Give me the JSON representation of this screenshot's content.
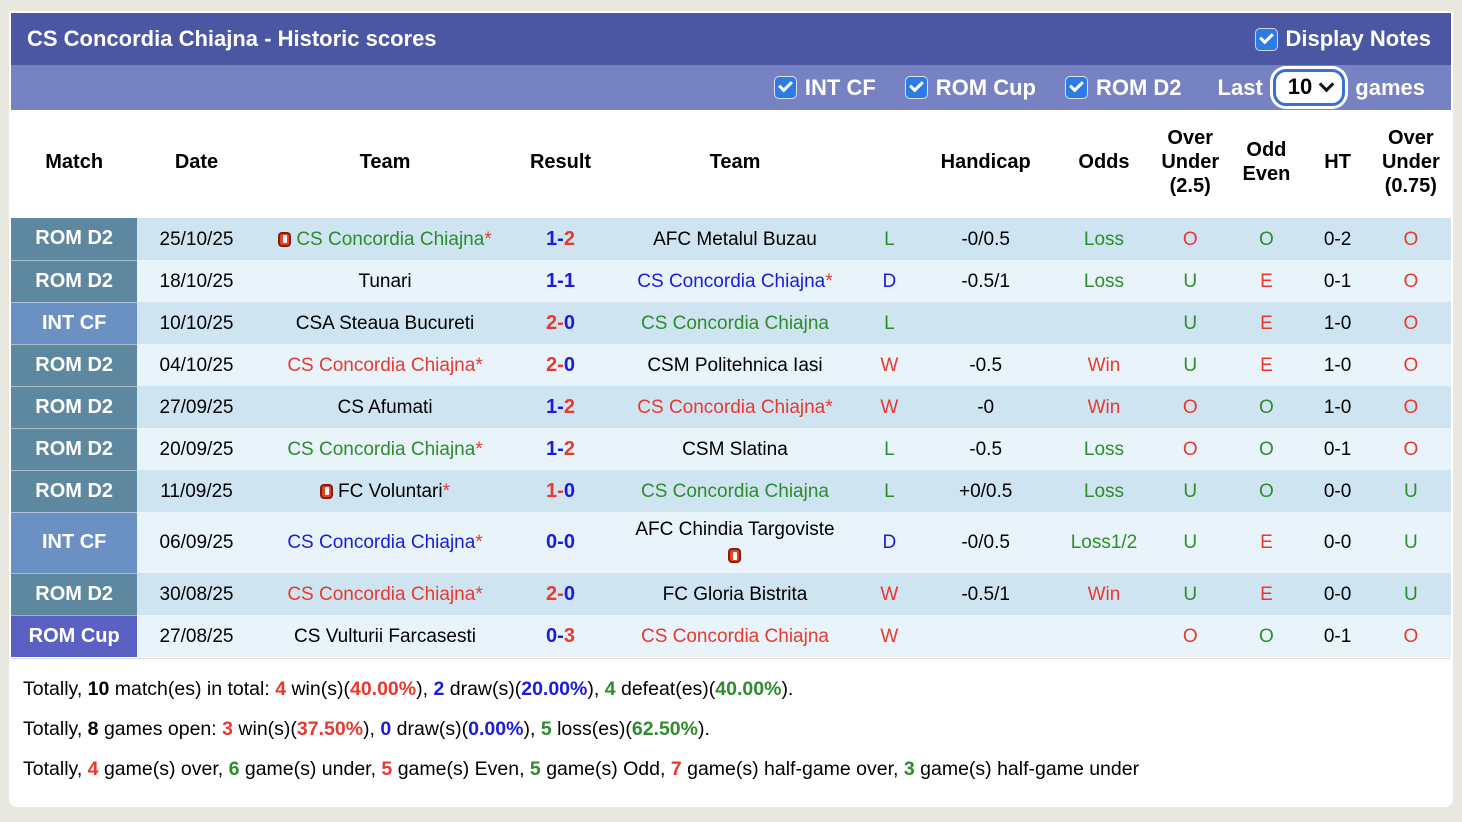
{
  "header": {
    "title": "CS Concordia Chiajna - Historic scores",
    "display_notes_label": "Display Notes",
    "display_notes_checked": true,
    "filters": [
      {
        "label": "INT CF",
        "checked": true
      },
      {
        "label": "ROM Cup",
        "checked": true
      },
      {
        "label": "ROM D2",
        "checked": true
      }
    ],
    "last_label": "Last",
    "games_count": "10",
    "games_label": "games"
  },
  "colors": {
    "red": "#e8392f",
    "blue": "#1b1be0",
    "green": "#2e8b2e",
    "header_dark": "#4c57a4",
    "header_light": "#7682c2",
    "checkbox_blue": "#2d7ce6",
    "row_odd": "#cfe4f1",
    "row_even": "#e9f4fa"
  },
  "league_colors": {
    "ROM D2": "#5e87a0",
    "INT CF": "#6b90c4",
    "ROM Cup": "#5a61c3"
  },
  "table": {
    "columns": [
      "Match",
      "Date",
      "Team",
      "Result",
      "Team",
      "",
      "Handicap",
      "Odds",
      "Over Under (2.5)",
      "Odd Even",
      "HT",
      "Over Under (0.75)"
    ],
    "star_char": "*",
    "score_separator": "-",
    "rows": [
      {
        "league": "ROM D2",
        "date": "25/10/25",
        "home": {
          "name": "CS Concordia Chiajna",
          "star": true,
          "color": "green",
          "redcard": "before"
        },
        "score": {
          "home": "1",
          "away": "2",
          "home_color": "blue",
          "away_color": "red"
        },
        "away": {
          "name": "AFC Metalul Buzau",
          "star": false,
          "color": "black",
          "redcard": null
        },
        "wdl": {
          "text": "L",
          "color": "green"
        },
        "handicap": "-0/0.5",
        "odds": {
          "text": "Loss",
          "color": "green"
        },
        "ou25": {
          "text": "O",
          "color": "red"
        },
        "oddeven": {
          "text": "O",
          "color": "green"
        },
        "ht": "0-2",
        "ou075": {
          "text": "O",
          "color": "red"
        }
      },
      {
        "league": "ROM D2",
        "date": "18/10/25",
        "home": {
          "name": "Tunari",
          "star": false,
          "color": "black",
          "redcard": null
        },
        "score": {
          "home": "1",
          "away": "1",
          "home_color": "blue",
          "away_color": "blue"
        },
        "away": {
          "name": "CS Concordia Chiajna",
          "star": true,
          "color": "blue",
          "redcard": null
        },
        "wdl": {
          "text": "D",
          "color": "blue"
        },
        "handicap": "-0.5/1",
        "odds": {
          "text": "Loss",
          "color": "green"
        },
        "ou25": {
          "text": "U",
          "color": "green"
        },
        "oddeven": {
          "text": "E",
          "color": "red"
        },
        "ht": "0-1",
        "ou075": {
          "text": "O",
          "color": "red"
        }
      },
      {
        "league": "INT CF",
        "date": "10/10/25",
        "home": {
          "name": "CSA Steaua Bucureti",
          "star": false,
          "color": "black",
          "redcard": null
        },
        "score": {
          "home": "2",
          "away": "0",
          "home_color": "red",
          "away_color": "blue"
        },
        "away": {
          "name": "CS Concordia Chiajna",
          "star": false,
          "color": "green",
          "redcard": null
        },
        "wdl": {
          "text": "L",
          "color": "green"
        },
        "handicap": "",
        "odds": {
          "text": "",
          "color": "black"
        },
        "ou25": {
          "text": "U",
          "color": "green"
        },
        "oddeven": {
          "text": "E",
          "color": "red"
        },
        "ht": "1-0",
        "ou075": {
          "text": "O",
          "color": "red"
        }
      },
      {
        "league": "ROM D2",
        "date": "04/10/25",
        "home": {
          "name": "CS Concordia Chiajna",
          "star": true,
          "color": "red",
          "redcard": null
        },
        "score": {
          "home": "2",
          "away": "0",
          "home_color": "red",
          "away_color": "blue"
        },
        "away": {
          "name": "CSM Politehnica Iasi",
          "star": false,
          "color": "black",
          "redcard": null
        },
        "wdl": {
          "text": "W",
          "color": "red"
        },
        "handicap": "-0.5",
        "odds": {
          "text": "Win",
          "color": "red"
        },
        "ou25": {
          "text": "U",
          "color": "green"
        },
        "oddeven": {
          "text": "E",
          "color": "red"
        },
        "ht": "1-0",
        "ou075": {
          "text": "O",
          "color": "red"
        }
      },
      {
        "league": "ROM D2",
        "date": "27/09/25",
        "home": {
          "name": "CS Afumati",
          "star": false,
          "color": "black",
          "redcard": null
        },
        "score": {
          "home": "1",
          "away": "2",
          "home_color": "blue",
          "away_color": "red"
        },
        "away": {
          "name": "CS Concordia Chiajna",
          "star": true,
          "color": "red",
          "redcard": null
        },
        "wdl": {
          "text": "W",
          "color": "red"
        },
        "handicap": "-0",
        "odds": {
          "text": "Win",
          "color": "red"
        },
        "ou25": {
          "text": "O",
          "color": "red"
        },
        "oddeven": {
          "text": "O",
          "color": "green"
        },
        "ht": "1-0",
        "ou075": {
          "text": "O",
          "color": "red"
        }
      },
      {
        "league": "ROM D2",
        "date": "20/09/25",
        "home": {
          "name": "CS Concordia Chiajna",
          "star": true,
          "color": "green",
          "redcard": null
        },
        "score": {
          "home": "1",
          "away": "2",
          "home_color": "blue",
          "away_color": "red"
        },
        "away": {
          "name": "CSM Slatina",
          "star": false,
          "color": "black",
          "redcard": null
        },
        "wdl": {
          "text": "L",
          "color": "green"
        },
        "handicap": "-0.5",
        "odds": {
          "text": "Loss",
          "color": "green"
        },
        "ou25": {
          "text": "O",
          "color": "red"
        },
        "oddeven": {
          "text": "O",
          "color": "green"
        },
        "ht": "0-1",
        "ou075": {
          "text": "O",
          "color": "red"
        }
      },
      {
        "league": "ROM D2",
        "date": "11/09/25",
        "home": {
          "name": "FC Voluntari",
          "star": true,
          "color": "black",
          "redcard": "before"
        },
        "score": {
          "home": "1",
          "away": "0",
          "home_color": "red",
          "away_color": "blue"
        },
        "away": {
          "name": "CS Concordia Chiajna",
          "star": false,
          "color": "green",
          "redcard": null
        },
        "wdl": {
          "text": "L",
          "color": "green"
        },
        "handicap": "+0/0.5",
        "odds": {
          "text": "Loss",
          "color": "green"
        },
        "ou25": {
          "text": "U",
          "color": "green"
        },
        "oddeven": {
          "text": "O",
          "color": "green"
        },
        "ht": "0-0",
        "ou075": {
          "text": "U",
          "color": "green"
        }
      },
      {
        "league": "INT CF",
        "date": "06/09/25",
        "home": {
          "name": "CS Concordia Chiajna",
          "star": true,
          "color": "blue",
          "redcard": null
        },
        "score": {
          "home": "0",
          "away": "0",
          "home_color": "blue",
          "away_color": "blue"
        },
        "away": {
          "name": "AFC Chindia Targoviste",
          "star": false,
          "color": "black",
          "redcard": "after"
        },
        "wdl": {
          "text": "D",
          "color": "blue"
        },
        "handicap": "-0/0.5",
        "odds": {
          "text": "Loss1/2",
          "color": "green"
        },
        "ou25": {
          "text": "U",
          "color": "green"
        },
        "oddeven": {
          "text": "E",
          "color": "red"
        },
        "ht": "0-0",
        "ou075": {
          "text": "U",
          "color": "green"
        }
      },
      {
        "league": "ROM D2",
        "date": "30/08/25",
        "home": {
          "name": "CS Concordia Chiajna",
          "star": true,
          "color": "red",
          "redcard": null
        },
        "score": {
          "home": "2",
          "away": "0",
          "home_color": "red",
          "away_color": "blue"
        },
        "away": {
          "name": "FC Gloria Bistrita",
          "star": false,
          "color": "black",
          "redcard": null
        },
        "wdl": {
          "text": "W",
          "color": "red"
        },
        "handicap": "-0.5/1",
        "odds": {
          "text": "Win",
          "color": "red"
        },
        "ou25": {
          "text": "U",
          "color": "green"
        },
        "oddeven": {
          "text": "E",
          "color": "red"
        },
        "ht": "0-0",
        "ou075": {
          "text": "U",
          "color": "green"
        }
      },
      {
        "league": "ROM Cup",
        "date": "27/08/25",
        "home": {
          "name": "CS Vulturii Farcasesti",
          "star": false,
          "color": "black",
          "redcard": null
        },
        "score": {
          "home": "0",
          "away": "3",
          "home_color": "blue",
          "away_color": "red"
        },
        "away": {
          "name": "CS Concordia Chiajna",
          "star": false,
          "color": "red",
          "redcard": null
        },
        "wdl": {
          "text": "W",
          "color": "red"
        },
        "handicap": "",
        "odds": {
          "text": "",
          "color": "black"
        },
        "ou25": {
          "text": "O",
          "color": "red"
        },
        "oddeven": {
          "text": "O",
          "color": "green"
        },
        "ht": "0-1",
        "ou075": {
          "text": "O",
          "color": "red"
        }
      }
    ]
  },
  "footer": {
    "lines": [
      {
        "segments": [
          {
            "t": "Totally, "
          },
          {
            "t": "10",
            "b": true
          },
          {
            "t": " match(es) in total: "
          },
          {
            "t": "4",
            "c": "red",
            "b": true
          },
          {
            "t": " win(s)("
          },
          {
            "t": "40.00%",
            "c": "red",
            "b": true
          },
          {
            "t": "), "
          },
          {
            "t": "2",
            "c": "blue",
            "b": true
          },
          {
            "t": " draw(s)("
          },
          {
            "t": "20.00%",
            "c": "blue",
            "b": true
          },
          {
            "t": "), "
          },
          {
            "t": "4",
            "c": "green",
            "b": true
          },
          {
            "t": " defeat(es)("
          },
          {
            "t": "40.00%",
            "c": "green",
            "b": true
          },
          {
            "t": ")."
          }
        ]
      },
      {
        "segments": [
          {
            "t": "Totally, "
          },
          {
            "t": "8",
            "b": true
          },
          {
            "t": " games open: "
          },
          {
            "t": "3",
            "c": "red",
            "b": true
          },
          {
            "t": " win(s)("
          },
          {
            "t": "37.50%",
            "c": "red",
            "b": true
          },
          {
            "t": "), "
          },
          {
            "t": "0",
            "c": "blue",
            "b": true
          },
          {
            "t": " draw(s)("
          },
          {
            "t": "0.00%",
            "c": "blue",
            "b": true
          },
          {
            "t": "), "
          },
          {
            "t": "5",
            "c": "green",
            "b": true
          },
          {
            "t": " loss(es)("
          },
          {
            "t": "62.50%",
            "c": "green",
            "b": true
          },
          {
            "t": ")."
          }
        ]
      },
      {
        "segments": [
          {
            "t": "Totally, "
          },
          {
            "t": "4",
            "c": "red",
            "b": true
          },
          {
            "t": " game(s) over, "
          },
          {
            "t": "6",
            "c": "green",
            "b": true
          },
          {
            "t": " game(s) under, "
          },
          {
            "t": "5",
            "c": "red",
            "b": true
          },
          {
            "t": " game(s) Even, "
          },
          {
            "t": "5",
            "c": "green",
            "b": true
          },
          {
            "t": " game(s) Odd, "
          },
          {
            "t": "7",
            "c": "red",
            "b": true
          },
          {
            "t": " game(s) half-game over, "
          },
          {
            "t": "3",
            "c": "green",
            "b": true
          },
          {
            "t": " game(s) half-game under"
          }
        ]
      }
    ]
  }
}
